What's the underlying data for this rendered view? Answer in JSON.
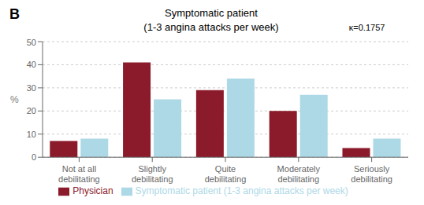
{
  "chart_data": {
    "type": "bar",
    "title": "Symptomatic patient",
    "subtitle": "(1-3 angina attacks per week)",
    "annotations": [
      "B",
      "κ=0.1757"
    ],
    "y_label": "%",
    "categories": [
      "Not at all\ndebilitating",
      "Slightly\ndebilitating",
      "Quite\ndebilitating",
      "Moderately\ndebilitating",
      "Seriously\ndebilitating"
    ],
    "series": [
      {
        "name": "Physician",
        "color": "#8B1A2A",
        "values": [
          7,
          41,
          29,
          20,
          4
        ]
      },
      {
        "name": "Symptomatic patient (1-3 angina attacks per week)",
        "color": "#ADD8E6",
        "values": [
          8,
          25,
          34,
          27,
          8
        ]
      }
    ],
    "ylim": [
      0,
      50
    ],
    "yticks": [
      0,
      10,
      20,
      30,
      40,
      50
    ],
    "grid": true,
    "legend": "bottom"
  }
}
